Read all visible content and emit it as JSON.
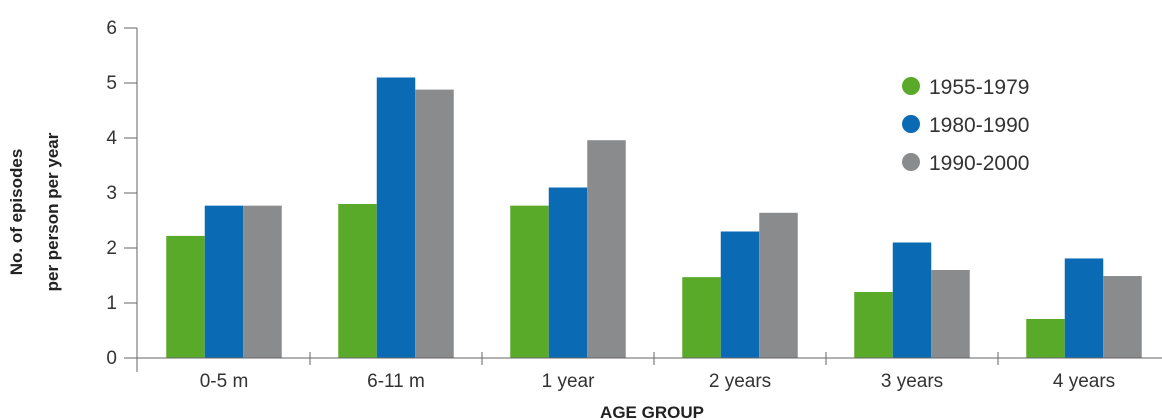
{
  "chart_data": {
    "type": "bar",
    "title": "",
    "xlabel": "AGE GROUP",
    "ylabel_lines": [
      "No. of episodes",
      "per person per year"
    ],
    "ylim": [
      0,
      6
    ],
    "yticks": [
      0,
      1,
      2,
      3,
      4,
      5,
      6
    ],
    "categories": [
      "0-5 m",
      "6-11 m",
      "1 year",
      "2 years",
      "3 years",
      "4 years"
    ],
    "series": [
      {
        "name": "1955-1979",
        "color": "#5aaa2a",
        "values": [
          2.22,
          2.8,
          2.77,
          1.47,
          1.2,
          0.71
        ]
      },
      {
        "name": "1980-1990",
        "color": "#0a6ab4",
        "values": [
          2.77,
          5.1,
          3.1,
          2.3,
          2.1,
          1.81
        ]
      },
      {
        "name": "1990-2000",
        "color": "#8a8b8d",
        "values": [
          2.77,
          4.88,
          3.96,
          2.64,
          1.6,
          1.49
        ]
      }
    ],
    "legend_position": "top-right",
    "grid": false
  }
}
